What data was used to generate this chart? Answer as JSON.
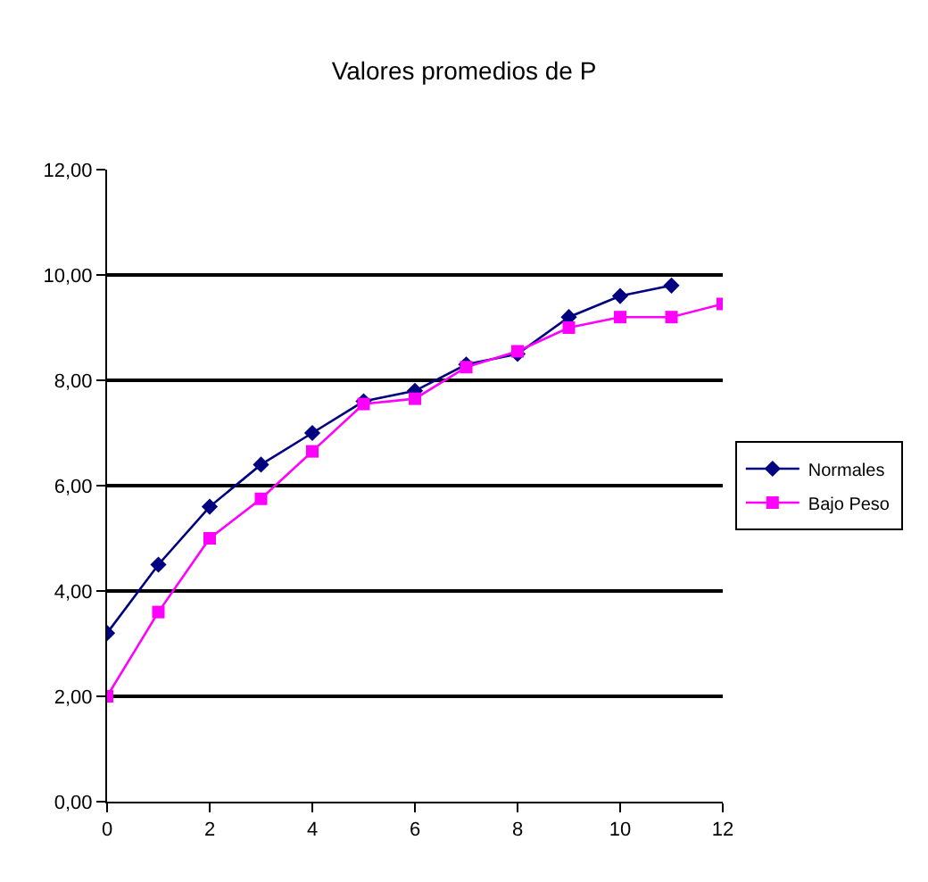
{
  "chart_data": {
    "type": "line",
    "title": "Valores promedios de P",
    "x": [
      0,
      1,
      2,
      3,
      4,
      5,
      6,
      7,
      8,
      9,
      10,
      11,
      12
    ],
    "series": [
      {
        "name": "Normales",
        "color": "#000080",
        "marker": "diamond",
        "values": [
          3.2,
          4.5,
          5.6,
          6.4,
          7.0,
          7.6,
          7.8,
          8.3,
          8.5,
          9.2,
          9.6,
          9.8,
          null
        ]
      },
      {
        "name": "Bajo Peso",
        "color": "#ff00ff",
        "marker": "square",
        "values": [
          2.0,
          3.6,
          5.0,
          5.75,
          6.65,
          7.55,
          7.65,
          8.25,
          8.55,
          9.0,
          9.2,
          9.2,
          9.45
        ]
      }
    ],
    "xlim": [
      0,
      12
    ],
    "xticks": [
      0,
      2,
      4,
      6,
      8,
      10,
      12
    ],
    "ylim": [
      0,
      12
    ],
    "yticks": [
      {
        "value": 0,
        "label": "0,00"
      },
      {
        "value": 2,
        "label": "2,00"
      },
      {
        "value": 4,
        "label": "4,00"
      },
      {
        "value": 6,
        "label": "6,00"
      },
      {
        "value": 8,
        "label": "8,00"
      },
      {
        "value": 10,
        "label": "10,00"
      },
      {
        "value": 12,
        "label": "12,00"
      }
    ],
    "grid": "y",
    "legend": "right",
    "line_style": "solid"
  }
}
